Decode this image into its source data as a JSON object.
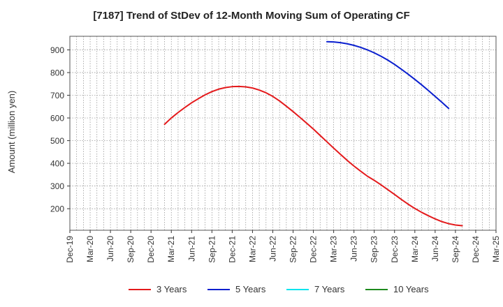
{
  "chart_data": {
    "type": "line",
    "title": "[7187]  Trend of StDev of 12-Month Moving Sum of Operating CF",
    "ylabel": "Amount (million yen)",
    "xlabel": "",
    "x_ticks": [
      "Dec-19",
      "Mar-20",
      "Jun-20",
      "Sep-20",
      "Dec-20",
      "Mar-21",
      "Jun-21",
      "Sep-21",
      "Dec-21",
      "Mar-22",
      "Jun-22",
      "Sep-22",
      "Dec-22",
      "Mar-23",
      "Jun-23",
      "Sep-23",
      "Dec-23",
      "Mar-24",
      "Jun-24",
      "Sep-24",
      "Dec-24",
      "Mar-25"
    ],
    "y_ticks": [
      200,
      300,
      400,
      500,
      600,
      700,
      800,
      900
    ],
    "ylim": [
      105,
      960
    ],
    "grid": true,
    "legend_position": "bottom",
    "series": [
      {
        "name": "3 Years",
        "color": "#e41a1c",
        "points": [
          [
            "Feb-21",
            572
          ],
          [
            "Mar-21",
            600
          ],
          [
            "Apr-21",
            624
          ],
          [
            "May-21",
            646
          ],
          [
            "Jun-21",
            667
          ],
          [
            "Jul-21",
            685
          ],
          [
            "Aug-21",
            702
          ],
          [
            "Sep-21",
            716
          ],
          [
            "Oct-21",
            727
          ],
          [
            "Nov-21",
            734
          ],
          [
            "Dec-21",
            738
          ],
          [
            "Jan-22",
            739
          ],
          [
            "Feb-22",
            737
          ],
          [
            "Mar-22",
            732
          ],
          [
            "Apr-22",
            723
          ],
          [
            "May-22",
            711
          ],
          [
            "Jun-22",
            695
          ],
          [
            "Jul-22",
            675
          ],
          [
            "Aug-22",
            652
          ],
          [
            "Sep-22",
            628
          ],
          [
            "Oct-22",
            603
          ],
          [
            "Nov-22",
            577
          ],
          [
            "Dec-22",
            551
          ],
          [
            "Jan-23",
            523
          ],
          [
            "Feb-23",
            495
          ],
          [
            "Mar-23",
            467
          ],
          [
            "Apr-23",
            440
          ],
          [
            "May-23",
            413
          ],
          [
            "Jun-23",
            388
          ],
          [
            "Jul-23",
            365
          ],
          [
            "Aug-23",
            343
          ],
          [
            "Sep-23",
            325
          ],
          [
            "Oct-23",
            305
          ],
          [
            "Nov-23",
            284
          ],
          [
            "Dec-23",
            263
          ],
          [
            "Jan-24",
            241
          ],
          [
            "Feb-24",
            220
          ],
          [
            "Mar-24",
            201
          ],
          [
            "Apr-24",
            184
          ],
          [
            "May-24",
            169
          ],
          [
            "Jun-24",
            155
          ],
          [
            "Jul-24",
            143
          ],
          [
            "Aug-24",
            134
          ],
          [
            "Sep-24",
            128
          ],
          [
            "Oct-24",
            125
          ]
        ]
      },
      {
        "name": "5 Years",
        "color": "#0a1fcf",
        "points": [
          [
            "Feb-23",
            936
          ],
          [
            "Mar-23",
            935
          ],
          [
            "Apr-23",
            932
          ],
          [
            "May-23",
            927
          ],
          [
            "Jun-23",
            920
          ],
          [
            "Jul-23",
            911
          ],
          [
            "Aug-23",
            900
          ],
          [
            "Sep-23",
            887
          ],
          [
            "Oct-23",
            872
          ],
          [
            "Nov-23",
            855
          ],
          [
            "Dec-23",
            836
          ],
          [
            "Jan-24",
            815
          ],
          [
            "Feb-24",
            793
          ],
          [
            "Mar-24",
            770
          ],
          [
            "Apr-24",
            746
          ],
          [
            "May-24",
            721
          ],
          [
            "Jun-24",
            695
          ],
          [
            "Jul-24",
            669
          ],
          [
            "Aug-24",
            642
          ]
        ]
      },
      {
        "name": "7 Years",
        "color": "#00e5ee",
        "points": []
      },
      {
        "name": "10 Years",
        "color": "#1e8a1e",
        "points": []
      }
    ]
  }
}
